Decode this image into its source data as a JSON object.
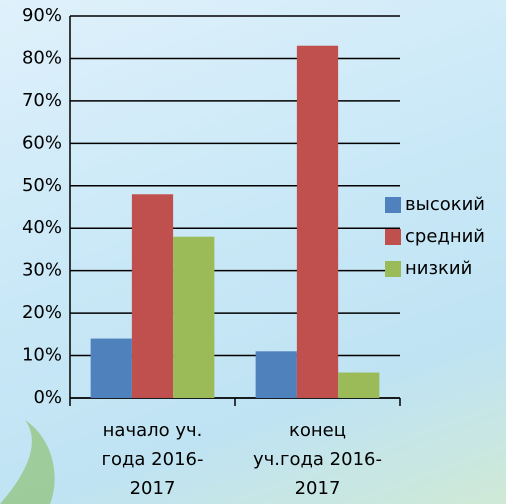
{
  "chart_data": {
    "type": "bar",
    "categories": [
      "начало уч. года 2016-2017",
      "конец уч.года 2016-2017"
    ],
    "series": [
      {
        "name": "высокий",
        "color": "#4f81bd",
        "values": [
          14,
          11
        ]
      },
      {
        "name": "средний",
        "color": "#c0504d",
        "values": [
          48,
          83
        ]
      },
      {
        "name": "низкий",
        "color": "#9bbb59",
        "values": [
          38,
          6
        ]
      }
    ],
    "ylim": [
      0,
      90
    ],
    "yticks": [
      {
        "value": 0,
        "label": "0%"
      },
      {
        "value": 10,
        "label": "10%"
      },
      {
        "value": 20,
        "label": "20%"
      },
      {
        "value": 30,
        "label": "30%"
      },
      {
        "value": 40,
        "label": "40%"
      },
      {
        "value": 50,
        "label": "50%"
      },
      {
        "value": 60,
        "label": "60%"
      },
      {
        "value": 70,
        "label": "70%"
      },
      {
        "value": 80,
        "label": "80%"
      },
      {
        "value": 90,
        "label": "90%"
      }
    ],
    "grid": true,
    "legend": "right"
  }
}
